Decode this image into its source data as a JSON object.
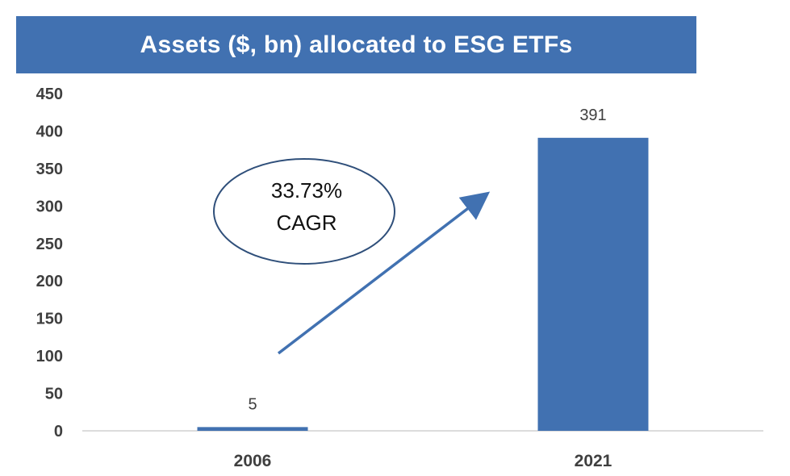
{
  "chart_data": {
    "type": "bar",
    "title": "Assets ($, bn) allocated to ESG ETFs",
    "categories": [
      "2006",
      "2021"
    ],
    "values": [
      5,
      391
    ],
    "data_labels": [
      "5",
      "391"
    ],
    "y_ticks": [
      "0",
      "50",
      "100",
      "150",
      "200",
      "250",
      "300",
      "350",
      "400",
      "450"
    ],
    "ylim": [
      0,
      450
    ],
    "xlabel": "",
    "ylabel": "",
    "grid": false,
    "annotation": {
      "line1": "33.73%",
      "line2": "CAGR"
    },
    "colors": {
      "bar": "#4171b1",
      "title_bg": "#4171b1",
      "arrow": "#4171b1"
    }
  }
}
